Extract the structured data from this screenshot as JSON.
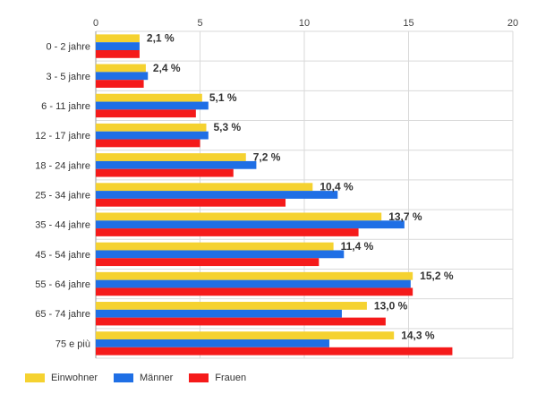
{
  "chart_data": {
    "type": "bar",
    "orientation": "horizontal",
    "categories": [
      "0 - 2 jahre",
      "3 - 5 jahre",
      "6 - 11 jahre",
      "12 - 17 jahre",
      "18 - 24 jahre",
      "25 - 34 jahre",
      "35 - 44 jahre",
      "45 - 54 jahre",
      "55 - 64 jahre",
      "65 - 74 jahre",
      "75 e più"
    ],
    "series": [
      {
        "name": "Einwohner",
        "color": "#f5d230",
        "values": [
          2.1,
          2.4,
          5.1,
          5.3,
          7.2,
          10.4,
          13.7,
          11.4,
          15.2,
          13.0,
          14.3
        ]
      },
      {
        "name": "Männer",
        "color": "#1f6fe5",
        "values": [
          2.1,
          2.5,
          5.4,
          5.4,
          7.7,
          11.6,
          14.8,
          11.9,
          15.1,
          11.8,
          11.2
        ]
      },
      {
        "name": "Frauen",
        "color": "#f51a1a",
        "values": [
          2.1,
          2.3,
          4.8,
          5.0,
          6.6,
          9.1,
          12.6,
          10.7,
          15.2,
          13.9,
          17.1
        ]
      }
    ],
    "data_labels": [
      "2,1 %",
      "2,4 %",
      "5,1 %",
      "5,3 %",
      "7,2 %",
      "10,4 %",
      "13,7 %",
      "11,4 %",
      "15,2 %",
      "13,0 %",
      "14,3 %"
    ],
    "x_ticks": [
      "0",
      "5",
      "10",
      "15",
      "20"
    ],
    "xlim": [
      0,
      20
    ],
    "grid": true,
    "legend_position": "bottom-left",
    "title": "",
    "xlabel": "",
    "ylabel": ""
  }
}
